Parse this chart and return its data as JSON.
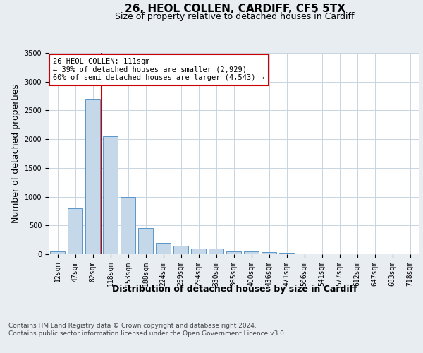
{
  "title1": "26, HEOL COLLEN, CARDIFF, CF5 5TX",
  "title2": "Size of property relative to detached houses in Cardiff",
  "xlabel": "Distribution of detached houses by size in Cardiff",
  "ylabel": "Number of detached properties",
  "categories": [
    "12sqm",
    "47sqm",
    "82sqm",
    "118sqm",
    "153sqm",
    "188sqm",
    "224sqm",
    "259sqm",
    "294sqm",
    "330sqm",
    "365sqm",
    "400sqm",
    "436sqm",
    "471sqm",
    "506sqm",
    "541sqm",
    "577sqm",
    "612sqm",
    "647sqm",
    "683sqm",
    "718sqm"
  ],
  "values": [
    50,
    800,
    2700,
    2050,
    1000,
    450,
    200,
    150,
    100,
    100,
    50,
    50,
    40,
    10,
    5,
    3,
    2,
    1,
    1,
    0,
    0
  ],
  "bar_color": "#c5d8ea",
  "bar_edge_color": "#5a96c8",
  "vline_color": "#cc0000",
  "annotation_text": "26 HEOL COLLEN: 111sqm\n← 39% of detached houses are smaller (2,929)\n60% of semi-detached houses are larger (4,543) →",
  "annotation_box_color": "#ffffff",
  "annotation_box_edge": "#cc0000",
  "ylim": [
    0,
    3500
  ],
  "yticks": [
    0,
    500,
    1000,
    1500,
    2000,
    2500,
    3000,
    3500
  ],
  "footer_text": "Contains HM Land Registry data © Crown copyright and database right 2024.\nContains public sector information licensed under the Open Government Licence v3.0.",
  "background_color": "#e8edf2",
  "plot_background": "#ffffff",
  "grid_color": "#c8d4e0",
  "title_fontsize": 11,
  "subtitle_fontsize": 9,
  "tick_fontsize": 7,
  "label_fontsize": 9,
  "footer_fontsize": 6.5,
  "annotation_fontsize": 7.5
}
